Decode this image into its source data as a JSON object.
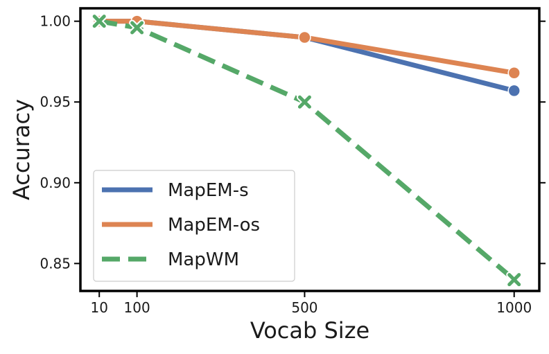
{
  "chart_data": {
    "type": "line",
    "title": "",
    "xlabel": "Vocab Size",
    "ylabel": "Accuracy",
    "x": [
      10,
      100,
      500,
      1000
    ],
    "xticks": [
      10,
      100,
      500,
      1000
    ],
    "xtick_labels": [
      "10",
      "100",
      "500",
      "1000"
    ],
    "yticks": [
      0.85,
      0.9,
      0.95,
      1.0
    ],
    "ytick_labels": [
      "0.85",
      "0.90",
      "0.95",
      "1.00"
    ],
    "xlim": [
      -35,
      1060
    ],
    "ylim": [
      0.833,
      1.008
    ],
    "grid": false,
    "legend_position": "lower-left",
    "series": [
      {
        "name": "MapEM-s",
        "values": [
          1.0,
          1.0,
          0.99,
          0.957
        ],
        "color": "#4c72b0",
        "line_style": "solid",
        "marker": "circle"
      },
      {
        "name": "MapEM-os",
        "values": [
          1.0,
          1.0,
          0.99,
          0.968
        ],
        "color": "#dd8452",
        "line_style": "solid",
        "marker": "circle"
      },
      {
        "name": "MapWM",
        "values": [
          1.0,
          0.996,
          0.95,
          0.84
        ],
        "color": "#55a868",
        "line_style": "dashed",
        "marker": "x"
      }
    ]
  }
}
